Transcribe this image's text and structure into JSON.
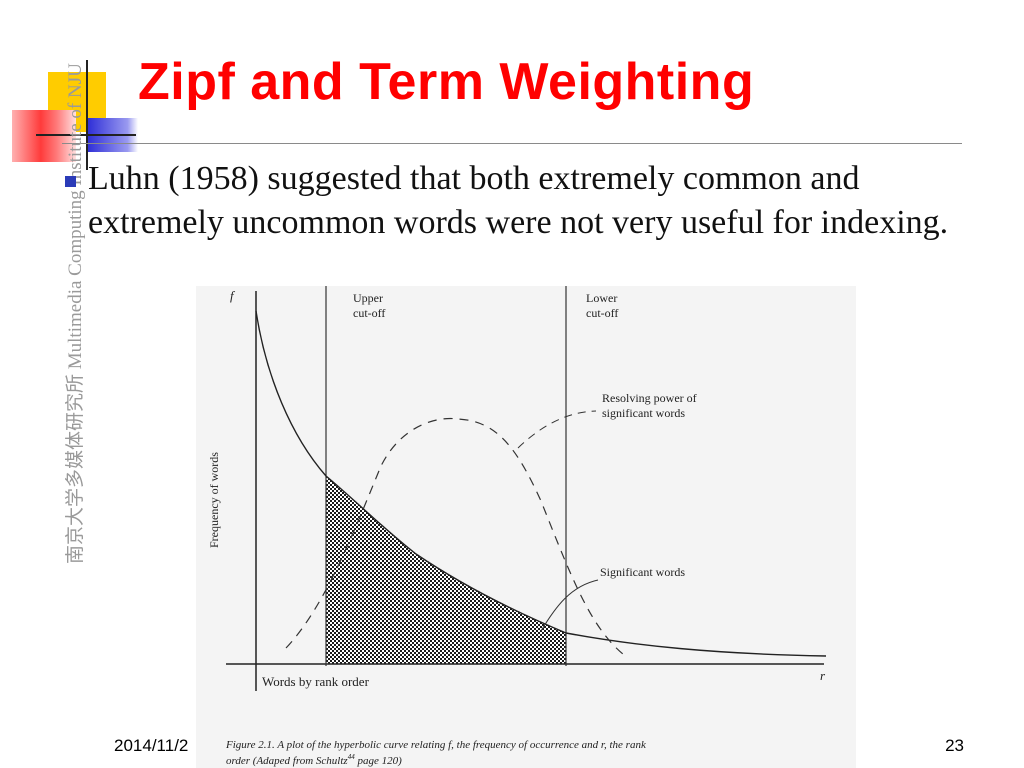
{
  "slide": {
    "title": "Zipf and Term Weighting",
    "side_label": "南京大学多媒体研究所 Multimedia Computing Institute of NJU",
    "bullet_text": "Luhn (1958) suggested that both extremely common and extremely uncommon words were not very useful for indexing.",
    "footer_date": "2014/11/2",
    "page_number": "23"
  },
  "figure": {
    "y_axis_letter": "f",
    "x_axis_letter": "r",
    "y_axis_label": "Frequency of words",
    "x_axis_label": "Words by rank order",
    "upper_cutoff": "Upper cut-off",
    "lower_cutoff": "Lower cut-off",
    "resolving_power": "Resolving power of significant words",
    "significant_words": "Significant words",
    "caption_line1": "Figure 2.1.  A plot of the hyperbolic curve relating f, the frequency of occurrence and r, the rank",
    "caption_line2": "order  (Adaped from Schultz   page 120)",
    "caption_sup": "44"
  },
  "colors": {
    "title": "#ff0000",
    "bullet": "#2b3bb8",
    "deco_yellow": "#ffcc00",
    "deco_red": "#ff3b3b",
    "deco_blue": "#3a3ad0"
  }
}
